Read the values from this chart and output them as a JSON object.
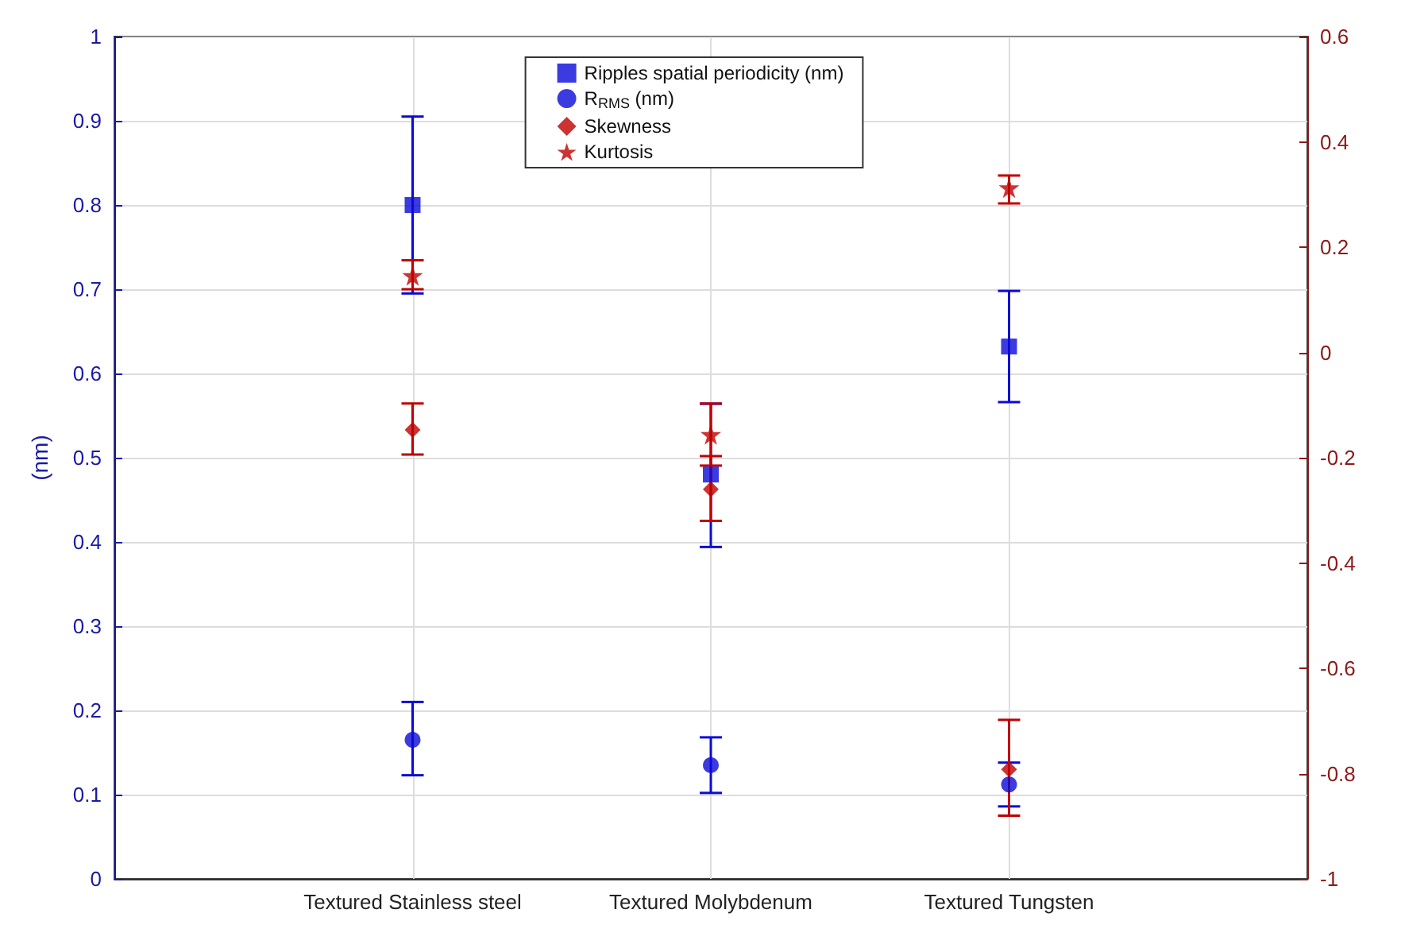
{
  "chart_data": {
    "type": "scatter",
    "ylabel": "(nm)",
    "categories": [
      "Textured Stainless steel",
      "Textured Molybdenum",
      "Textured Tungsten"
    ],
    "series": [
      {
        "name": "Ripples spatial periodicity (nm)",
        "color": "#0a0ad8",
        "marker": "square",
        "values": [
          0.8,
          0.48,
          0.632
        ],
        "errors": [
          [
            0.695,
            0.905
          ],
          [
            0.394,
            0.564
          ],
          [
            0.566,
            0.698
          ]
        ]
      },
      {
        "name": "R$_{RMS}$ (nm)",
        "color": "#0a0ad8",
        "marker": "circle",
        "values": [
          0.165,
          0.135,
          0.112
        ],
        "errors": [
          [
            0.123,
            0.21
          ],
          [
            0.102,
            0.168
          ],
          [
            0.086,
            0.138
          ]
        ]
      },
      {
        "name": "Skewness",
        "color": "#c00000",
        "marker": "diamond",
        "axis": "y2",
        "values": [
          -0.147,
          -0.26,
          -0.792
        ],
        "errors": [
          [
            -0.194,
            -0.097
          ],
          [
            -0.32,
            -0.197
          ],
          [
            -0.88,
            -0.698
          ]
        ]
      },
      {
        "name": "Kurtosis",
        "color": "#c00000",
        "marker": "star",
        "axis": "y2",
        "values": [
          0.146,
          -0.156,
          0.313
        ],
        "errors": [
          [
            0.12,
            0.175
          ],
          [
            -0.215,
            -0.097
          ],
          [
            0.283,
            0.336
          ]
        ]
      }
    ],
    "ylim": [
      0,
      1
    ],
    "yticks": [
      0,
      0.1,
      0.2,
      0.3,
      0.4,
      0.5,
      0.6,
      0.7,
      0.8,
      0.9,
      1
    ],
    "y2lim": [
      -1,
      0.6
    ],
    "y2ticks": [
      -1,
      -0.8,
      -0.6,
      -0.4,
      -0.2,
      0,
      0.2,
      0.4,
      0.6
    ],
    "grid": true,
    "legend": "top"
  }
}
